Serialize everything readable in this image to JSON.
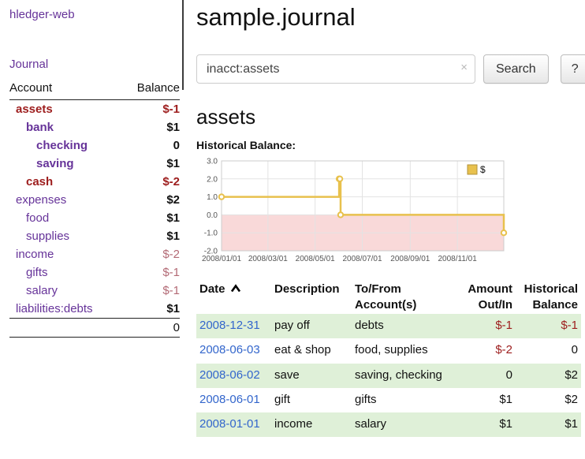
{
  "app": {
    "brand": "hledger-web",
    "nav": {
      "journal": "Journal"
    }
  },
  "sidebar": {
    "header": {
      "account": "Account",
      "balance": "Balance"
    },
    "accounts": [
      {
        "name": "assets",
        "balance": "$-1",
        "indent": 1,
        "bold": true,
        "name_color": "negative",
        "balance_color": "negative"
      },
      {
        "name": "bank",
        "balance": "$1",
        "indent": 2,
        "bold": true,
        "name_color": "link",
        "balance_color": "normal"
      },
      {
        "name": "checking",
        "balance": "0",
        "indent": 3,
        "bold": true,
        "name_color": "link",
        "balance_color": "normal"
      },
      {
        "name": "saving",
        "balance": "$1",
        "indent": 3,
        "bold": true,
        "name_color": "link",
        "balance_color": "normal"
      },
      {
        "name": "cash",
        "balance": "$-2",
        "indent": 2,
        "bold": true,
        "name_color": "negative",
        "balance_color": "negative"
      },
      {
        "name": "expenses",
        "balance": "$2",
        "indent": 1,
        "bold": false,
        "name_color": "link",
        "balance_color": "normal"
      },
      {
        "name": "food",
        "balance": "$1",
        "indent": 2,
        "bold": false,
        "name_color": "link",
        "balance_color": "normal"
      },
      {
        "name": "supplies",
        "balance": "$1",
        "indent": 2,
        "bold": false,
        "name_color": "link",
        "balance_color": "normal"
      },
      {
        "name": "income",
        "balance": "$-2",
        "indent": 1,
        "bold": false,
        "name_color": "link",
        "balance_color": "negative-soft"
      },
      {
        "name": "gifts",
        "balance": "$-1",
        "indent": 2,
        "bold": false,
        "name_color": "link",
        "balance_color": "negative-soft"
      },
      {
        "name": "salary",
        "balance": "$-1",
        "indent": 2,
        "bold": false,
        "name_color": "link",
        "balance_color": "negative-soft"
      },
      {
        "name": "liabilities:debts",
        "balance": "$1",
        "indent": 1,
        "bold": false,
        "name_color": "link",
        "balance_color": "normal"
      }
    ],
    "total": "0"
  },
  "main": {
    "title": "sample.journal",
    "search": {
      "value": "inacct:assets",
      "clear": "×",
      "submit_label": "Search",
      "help_label": "?"
    },
    "heading": "assets",
    "chart_title": "Historical Balance:"
  },
  "chart_data": {
    "type": "line",
    "title": "Historical Balance",
    "step": true,
    "series": [
      {
        "name": "$",
        "points": [
          [
            "2008-01-01",
            1
          ],
          [
            "2008-06-01",
            2
          ],
          [
            "2008-06-02",
            2
          ],
          [
            "2008-06-03",
            0
          ],
          [
            "2008-12-31",
            -1
          ]
        ]
      }
    ],
    "x_range": [
      "2008-01-01",
      "2008-12-31"
    ],
    "x_ticks": [
      "2008/01/01",
      "2008/03/01",
      "2008/05/01",
      "2008/07/01",
      "2008/09/01",
      "2008/11/01"
    ],
    "y_ticks": [
      -2,
      -1,
      0,
      1,
      2,
      3
    ],
    "ylim": [
      -2,
      3
    ],
    "legend": {
      "label": "$",
      "position": "top-right"
    },
    "colors": {
      "line": "#e8c14d",
      "negative_region": "#f9d9d9",
      "grid": "#e3e3e3"
    }
  },
  "register": {
    "columns": [
      {
        "label": "Date",
        "sort": "asc"
      },
      {
        "label": "Description"
      },
      {
        "label": "To/From Account(s)"
      },
      {
        "label": "Amount Out/In",
        "align": "right"
      },
      {
        "label": "Historical Balance",
        "align": "right"
      }
    ],
    "rows": [
      {
        "date": "2008-12-31",
        "description": "pay off",
        "accounts": "debts",
        "amount": "$-1",
        "amount_negative": true,
        "balance": "$-1",
        "balance_negative": true,
        "shaded": true
      },
      {
        "date": "2008-06-03",
        "description": "eat & shop",
        "accounts": "food, supplies",
        "amount": "$-2",
        "amount_negative": true,
        "balance": "0",
        "balance_negative": false,
        "shaded": false
      },
      {
        "date": "2008-06-02",
        "description": "save",
        "accounts": "saving, checking",
        "amount": "0",
        "amount_negative": false,
        "balance": "$2",
        "balance_negative": false,
        "shaded": true
      },
      {
        "date": "2008-06-01",
        "description": "gift",
        "accounts": "gifts",
        "amount": "$1",
        "amount_negative": false,
        "balance": "$2",
        "balance_negative": false,
        "shaded": false
      },
      {
        "date": "2008-01-01",
        "description": "income",
        "accounts": "salary",
        "amount": "$1",
        "amount_negative": false,
        "balance": "$1",
        "balance_negative": false,
        "shaded": true
      }
    ]
  },
  "colors": {
    "link_purple": "#663399",
    "date_blue": "#3366cc",
    "negative": "#9d1d1d",
    "negative_soft": "#b36a75",
    "row_green": "#dff0d8"
  }
}
